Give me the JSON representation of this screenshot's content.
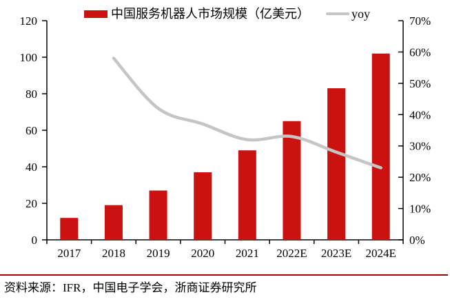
{
  "legend": {
    "bars_label": "中国服务机器人市场规模（亿美元）",
    "line_label": "yoy"
  },
  "footer": {
    "source_text": "资料来源：IFR，中国电子学会，浙商证券研究所"
  },
  "colors": {
    "bar": "#cc1111",
    "line": "#c5c5c5",
    "axis": "#000000",
    "text": "#000000",
    "footer_rule": "#a00000"
  },
  "chart_data": {
    "type": "bar",
    "title": "",
    "categories": [
      "2017",
      "2018",
      "2019",
      "2020",
      "2021",
      "2022E",
      "2023E",
      "2024E"
    ],
    "series": [
      {
        "name": "中国服务机器人市场规模（亿美元）",
        "type": "bar",
        "axis": "left",
        "values": [
          12,
          19,
          27,
          37,
          49,
          65,
          83,
          102
        ]
      },
      {
        "name": "yoy",
        "type": "line",
        "axis": "right",
        "unit": "%",
        "values": [
          null,
          58,
          42,
          37,
          32,
          33,
          28,
          23
        ]
      }
    ],
    "left_axis": {
      "min": 0,
      "max": 120,
      "tick_step": 20,
      "ticks": [
        "0",
        "20",
        "40",
        "60",
        "80",
        "100",
        "120"
      ]
    },
    "right_axis": {
      "min": 0,
      "max": 70,
      "tick_step": 10,
      "ticks": [
        "0%",
        "10%",
        "20%",
        "30%",
        "40%",
        "50%",
        "60%",
        "70%"
      ]
    },
    "grid": false,
    "legend_position": "top"
  }
}
